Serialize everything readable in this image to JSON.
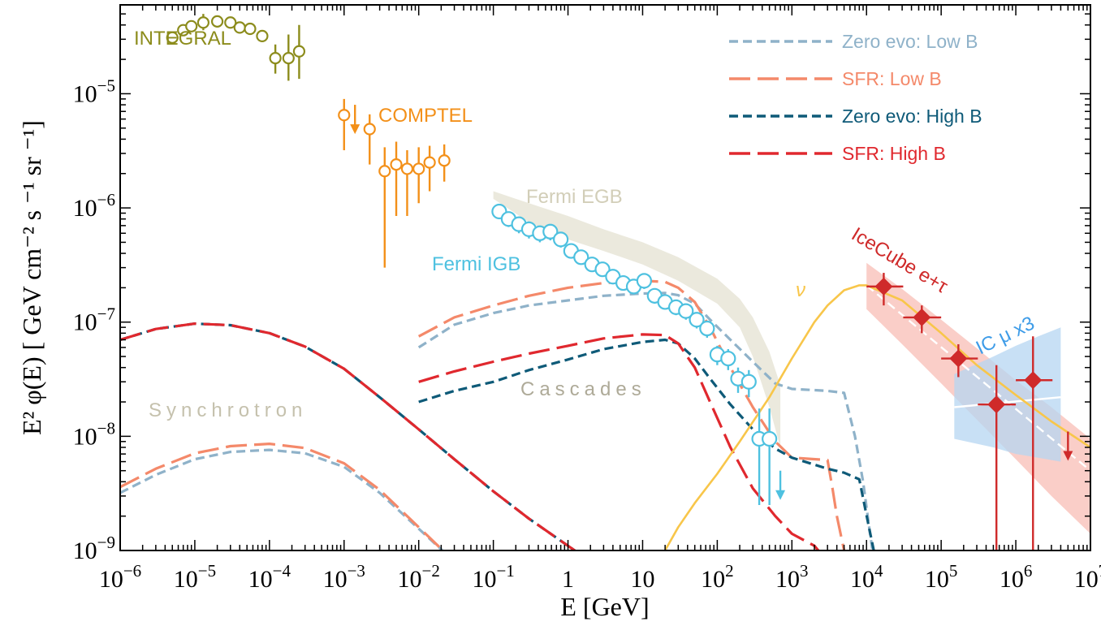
{
  "chart_data": {
    "type": "line",
    "xlabel": "E [GeV]",
    "ylabel": "E² φ(E)  [ GeV cm⁻² s ⁻¹ sr ⁻¹]",
    "xscale": "log",
    "yscale": "log",
    "xlim": [
      1e-06,
      10000000.0
    ],
    "ylim": [
      1e-09,
      6e-05
    ],
    "grid": false,
    "legend_position": "top-right",
    "x_ticks": [
      {
        "value": 1e-06,
        "base": "10",
        "exp": "−6"
      },
      {
        "value": 1e-05,
        "base": "10",
        "exp": "−5"
      },
      {
        "value": 0.0001,
        "base": "10",
        "exp": "−4"
      },
      {
        "value": 0.001,
        "base": "10",
        "exp": "−3"
      },
      {
        "value": 0.01,
        "base": "10",
        "exp": "−2"
      },
      {
        "value": 0.1,
        "base": "10",
        "exp": "−1"
      },
      {
        "value": 1,
        "base": "1",
        "exp": ""
      },
      {
        "value": 10,
        "base": "10",
        "exp": ""
      },
      {
        "value": 100,
        "base": "10",
        "exp": "2"
      },
      {
        "value": 1000,
        "base": "10",
        "exp": "3"
      },
      {
        "value": 10000.0,
        "base": "10",
        "exp": "4"
      },
      {
        "value": 100000.0,
        "base": "10",
        "exp": "5"
      },
      {
        "value": 1000000.0,
        "base": "10",
        "exp": "6"
      },
      {
        "value": 10000000.0,
        "base": "10",
        "exp": "7"
      }
    ],
    "y_ticks": [
      {
        "value": 1e-09,
        "base": "10",
        "exp": "−9"
      },
      {
        "value": 1e-08,
        "base": "10",
        "exp": "−8"
      },
      {
        "value": 1e-07,
        "base": "10",
        "exp": "−7"
      },
      {
        "value": 1e-06,
        "base": "10",
        "exp": "−6"
      },
      {
        "value": 1e-05,
        "base": "10",
        "exp": "−5"
      }
    ],
    "legend": [
      {
        "label": "Zero evo: Low B",
        "color": "#8fb2c9",
        "dash": "short"
      },
      {
        "label": "SFR: Low B",
        "color": "#f4896a",
        "dash": "long"
      },
      {
        "label": "Zero evo: High B",
        "color": "#0e5a78",
        "dash": "short"
      },
      {
        "label": "SFR: High B",
        "color": "#e0282e",
        "dash": "long"
      }
    ],
    "series": [
      {
        "name": "Zero evo: Low B",
        "color": "#8fb2c9",
        "dash": "short",
        "x": [
          1e-06,
          3e-06,
          1e-05,
          3e-05,
          0.0001,
          0.0003,
          0.001,
          0.003,
          0.01,
          0.03
        ],
        "y": [
          3.2e-09,
          4.6e-09,
          6.3e-09,
          7.3e-09,
          7.6e-09,
          7.1e-09,
          5.4e-09,
          3.2e-09,
          1.55e-09,
          8e-10
        ]
      },
      {
        "name": "SFR: Low B",
        "color": "#f4896a",
        "dash": "long",
        "x": [
          1e-06,
          3e-06,
          1e-05,
          3e-05,
          0.0001,
          0.0003,
          0.001,
          0.003,
          0.01,
          0.03
        ],
        "y": [
          3.6e-09,
          5.2e-09,
          7.1e-09,
          8.2e-09,
          8.6e-09,
          7.9e-09,
          5.8e-09,
          3.4e-09,
          1.6e-09,
          8e-10
        ]
      },
      {
        "name": "Zero evo: High B",
        "color": "#0e5a78",
        "dash": "short",
        "x": [
          1e-06,
          3e-06,
          1e-05,
          3e-05,
          0.0001,
          0.0003,
          0.001,
          0.003,
          0.01,
          0.03,
          0.1,
          0.3,
          1,
          2,
          3
        ],
        "y": [
          7e-08,
          8.7e-08,
          9.7e-08,
          9.4e-08,
          8e-08,
          6.1e-08,
          3.9e-08,
          2.2e-08,
          1.15e-08,
          6.3e-09,
          3.3e-09,
          1.9e-09,
          1.1e-09,
          8e-10,
          6e-10
        ]
      },
      {
        "name": "SFR: High B",
        "color": "#e0282e",
        "dash": "long",
        "x": [
          1e-06,
          3e-06,
          1e-05,
          3e-05,
          0.0001,
          0.0003,
          0.001,
          0.003,
          0.01,
          0.03,
          0.1,
          0.3,
          1,
          2,
          3
        ],
        "y": [
          7e-08,
          8.7e-08,
          9.7e-08,
          9.4e-08,
          8e-08,
          6.1e-08,
          3.9e-08,
          2.2e-08,
          1.15e-08,
          6.3e-09,
          3.3e-09,
          1.9e-09,
          1.1e-09,
          8e-10,
          6e-10
        ]
      },
      {
        "name": "Zero evo: Low B",
        "color": "#8fb2c9",
        "dash": "short",
        "x": [
          0.01,
          0.03,
          0.1,
          0.3,
          1,
          3,
          10,
          20,
          30,
          50,
          80,
          150,
          300,
          600,
          1000,
          3000,
          5000,
          7000,
          9000,
          11000,
          13000
        ],
        "y": [
          6e-08,
          9.5e-08,
          1.2e-07,
          1.4e-07,
          1.55e-07,
          1.7e-07,
          1.78e-07,
          1.8e-07,
          1.72e-07,
          1.45e-07,
          1.05e-07,
          7e-08,
          4.5e-08,
          2.9e-08,
          2.6e-08,
          2.5e-08,
          2.4e-08,
          1e-08,
          4e-09,
          1.5e-09,
          7e-10
        ]
      },
      {
        "name": "SFR: Low B",
        "color": "#f4896a",
        "dash": "long",
        "x": [
          0.01,
          0.03,
          0.1,
          0.3,
          1,
          3,
          10,
          20,
          30,
          50,
          80,
          150,
          300,
          600,
          1000,
          3000,
          3500,
          4000,
          5000,
          7000
        ],
        "y": [
          7.5e-08,
          1.1e-07,
          1.4e-07,
          1.7e-07,
          2e-07,
          2.2e-07,
          2.3e-07,
          2.25e-07,
          2e-07,
          1.5e-07,
          9e-08,
          4e-08,
          1.8e-08,
          9e-09,
          6.5e-09,
          6.2e-09,
          3.5e-09,
          2e-09,
          1e-09,
          5e-10
        ]
      },
      {
        "name": "Zero evo: High B",
        "color": "#0e5a78",
        "dash": "short",
        "x": [
          0.01,
          0.03,
          0.1,
          0.3,
          1,
          3,
          10,
          20,
          30,
          50,
          80,
          150,
          300,
          600,
          1000,
          3000,
          5000,
          8000,
          11000,
          14000
        ],
        "y": [
          2e-08,
          2.5e-08,
          3e-08,
          3.8e-08,
          4.7e-08,
          5.8e-08,
          6.7e-08,
          7e-08,
          6.5e-08,
          4.8e-08,
          3.2e-08,
          1.9e-08,
          1.15e-08,
          7.8e-09,
          6.5e-09,
          5.2e-09,
          4.8e-09,
          4.2e-09,
          1.5e-09,
          7e-10
        ]
      },
      {
        "name": "SFR: High B",
        "color": "#e0282e",
        "dash": "long",
        "x": [
          0.01,
          0.03,
          0.1,
          0.3,
          1,
          3,
          10,
          20,
          30,
          50,
          80,
          150,
          300,
          600,
          1000,
          2000,
          3000,
          4000
        ],
        "y": [
          3e-08,
          3.7e-08,
          4.5e-08,
          5.3e-08,
          6.2e-08,
          7.2e-08,
          7.8e-08,
          7.7e-08,
          6.5e-08,
          4e-08,
          2e-08,
          8e-09,
          3.5e-09,
          2e-09,
          1.4e-09,
          1.1e-09,
          8e-10,
          6e-10
        ]
      },
      {
        "name": "ν",
        "color": "#f8c64a",
        "dash": "solid",
        "x": [
          20,
          30,
          50,
          100,
          200,
          500,
          1000,
          2000,
          3000,
          5000,
          8000,
          10000.0,
          30000.0,
          100000.0,
          300000.0,
          1000000.0,
          3000000.0,
          10000000.0
        ],
        "y": [
          1e-09,
          1.6e-09,
          2.6e-09,
          4.7e-09,
          9e-09,
          2.2e-08,
          4.8e-08,
          1e-07,
          1.4e-07,
          1.9e-07,
          2.1e-07,
          2.1e-07,
          1.55e-07,
          8e-08,
          4.2e-08,
          2.3e-08,
          1.35e-08,
          8e-09
        ]
      }
    ],
    "bands": [
      {
        "name": "Fermi EGB",
        "color": "#e4e1d2",
        "x": [
          0.1,
          0.3,
          1,
          3,
          10,
          30,
          100,
          200,
          300,
          500,
          700
        ],
        "y_low": [
          1.2e-06,
          7.5e-07,
          5.3e-07,
          4.2e-07,
          3.2e-07,
          2.3e-07,
          1.45e-07,
          9e-08,
          5e-08,
          1.8e-08,
          8e-09
        ],
        "y_high": [
          1.4e-06,
          1.1e-06,
          8.5e-07,
          6.5e-07,
          5e-07,
          3.7e-07,
          2.4e-07,
          1.6e-07,
          1.1e-07,
          5.5e-08,
          2.8e-08
        ]
      },
      {
        "name": "IceCube e+τ",
        "color": "#f8bdb5",
        "x": [
          10000.0,
          30000.0,
          100000.0,
          300000.0,
          1000000.0,
          3000000.0,
          10000000.0
        ],
        "y_low": [
          1.3e-07,
          6.4e-08,
          2.9e-08,
          1.4e-08,
          6.3e-09,
          3e-09,
          1.4e-09
        ],
        "y_high": [
          3.3e-07,
          1.95e-07,
          1.05e-07,
          5.9e-08,
          3.1e-08,
          1.8e-08,
          9.5e-09
        ]
      },
      {
        "name": "IC μ x3",
        "color": "#b5d6f2",
        "x": [
          150000.0,
          500000.0,
          1000000.0,
          2000000.0,
          4000000.0
        ],
        "y_low": [
          9.5e-09,
          8e-09,
          7e-09,
          6.5e-09,
          6e-09
        ],
        "y_high": [
          3.5e-08,
          5e-08,
          6.2e-08,
          7.5e-08,
          9e-08
        ]
      }
    ],
    "ic_mu_line": {
      "x": [
        150000.0,
        4000000.0
      ],
      "y": [
        1.8e-08,
        2.2e-08
      ],
      "color": "#ffffff"
    },
    "icecube_line": {
      "x": [
        10000.0,
        10000000.0
      ],
      "y": [
        2.1e-07,
        5e-09
      ],
      "color": "#ffffff"
    },
    "points": [
      {
        "name": "INTEGRAL",
        "color": "#8c8c1c",
        "marker": "open-circle",
        "x": [
          5e-06,
          7e-06,
          9e-06,
          1.3e-05,
          2e-05,
          3e-05,
          4e-05,
          5.5e-05,
          8e-05,
          0.00012,
          0.00018,
          0.00025
        ],
        "y": [
          3.1e-05,
          3.6e-05,
          3.9e-05,
          4.2e-05,
          4.3e-05,
          4.2e-05,
          3.8e-05,
          3.7e-05,
          3.2e-05,
          2.05e-05,
          2.05e-05,
          2.35e-05
        ],
        "y_low": [
          3.1e-05,
          3.6e-05,
          3.9e-05,
          3.6e-05,
          4.3e-05,
          4.2e-05,
          3.8e-05,
          3.7e-05,
          3.2e-05,
          1.5e-05,
          1.3e-05,
          1.35e-05
        ],
        "y_high": [
          3.1e-05,
          3.6e-05,
          3.9e-05,
          5e-05,
          4.3e-05,
          4.2e-05,
          3.8e-05,
          3.7e-05,
          3.2e-05,
          2.7e-05,
          3.3e-05,
          4e-05
        ]
      },
      {
        "name": "COMPTEL",
        "color": "#f39019",
        "marker": "open-circle",
        "x": [
          0.001,
          0.0022,
          0.0035,
          0.005,
          0.007,
          0.01,
          0.014,
          0.022
        ],
        "y": [
          6.5e-06,
          4.9e-06,
          2.1e-06,
          2.4e-06,
          2.2e-06,
          2.2e-06,
          2.5e-06,
          2.6e-06
        ],
        "y_low": [
          3.2e-06,
          2.4e-06,
          3e-07,
          8.5e-07,
          8.5e-07,
          1.1e-06,
          1.4e-06,
          1.7e-06
        ],
        "y_high": [
          9e-06,
          6.6e-06,
          3.4e-06,
          3.8e-06,
          3.2e-06,
          3.4e-06,
          3.5e-06,
          3.6e-06
        ]
      },
      {
        "name": "Fermi IGB",
        "color": "#4ec1e0",
        "marker": "open-circle",
        "x": [
          0.12,
          0.16,
          0.22,
          0.3,
          0.42,
          0.58,
          0.8,
          1.1,
          1.5,
          2.1,
          2.9,
          4,
          5.5,
          7.6,
          10.5,
          14.5,
          20,
          28,
          38,
          53,
          73,
          100,
          140,
          190,
          265,
          365,
          500
        ],
        "y": [
          9.3e-07,
          8e-07,
          7.2e-07,
          6.5e-07,
          6e-07,
          6.2e-07,
          5.3e-07,
          4.2e-07,
          3.7e-07,
          3.2e-07,
          2.9e-07,
          2.5e-07,
          2.2e-07,
          2.05e-07,
          2.3e-07,
          1.7e-07,
          1.5e-07,
          1.35e-07,
          1.25e-07,
          1.05e-07,
          8.8e-08,
          5.2e-08,
          4.8e-08,
          3.2e-08,
          3e-08,
          9.5e-09,
          9.5e-09
        ],
        "y_low": [
          8e-07,
          6.8e-07,
          6e-07,
          5.4e-07,
          5e-07,
          5.2e-07,
          4.5e-07,
          3.6e-07,
          3.2e-07,
          2.75e-07,
          2.5e-07,
          2.15e-07,
          1.9e-07,
          1.75e-07,
          1.95e-07,
          1.45e-07,
          1.3e-07,
          1.15e-07,
          1.05e-07,
          8.8e-08,
          7.3e-08,
          4.2e-08,
          3.8e-08,
          2.4e-08,
          2.2e-08,
          2.5e-09,
          2.5e-09
        ],
        "y_high": [
          1.05e-06,
          9.2e-07,
          8.4e-07,
          7.6e-07,
          7e-07,
          7.2e-07,
          6.1e-07,
          4.8e-07,
          4.2e-07,
          3.7e-07,
          3.3e-07,
          2.85e-07,
          2.5e-07,
          2.35e-07,
          2.65e-07,
          1.95e-07,
          1.7e-07,
          1.55e-07,
          1.45e-07,
          1.22e-07,
          1.03e-07,
          6.2e-08,
          5.8e-08,
          4e-08,
          3.8e-08,
          1.75e-08,
          1.75e-08
        ]
      },
      {
        "name": "IceCube e+τ",
        "color": "#cf2a2a",
        "marker": "filled-diamond",
        "x": [
          17000,
          55000,
          170000,
          550000,
          1700000
        ],
        "y": [
          2.05e-07,
          1.1e-07,
          4.8e-08,
          1.9e-08,
          3.1e-08
        ],
        "y_low": [
          1.4e-07,
          8e-08,
          3.3e-08,
          1e-09,
          1e-09
        ],
        "y_high": [
          2.7e-07,
          1.4e-07,
          6.4e-08,
          4.2e-08,
          7.5e-08
        ],
        "x_low": [
          10000,
          31000,
          100000,
          310000,
          1000000
        ],
        "x_high": [
          31000,
          100000,
          310000,
          1000000,
          3100000
        ]
      }
    ],
    "upper_limits": [
      {
        "series": "COMPTEL",
        "color": "#f39019",
        "x": 0.0014,
        "y": 8e-06
      },
      {
        "series": "Fermi IGB",
        "color": "#4ec1e0",
        "x": 700,
        "y": 5e-09
      },
      {
        "series": "IceCube e+τ",
        "color": "#cf2a2a",
        "x": 5000000,
        "y": 1.1e-08
      }
    ],
    "annotations": {
      "integral": {
        "text": "INTEGRAL",
        "color": "#8c8c1c"
      },
      "comptel": {
        "text": "COMPTEL",
        "color": "#f39019"
      },
      "fermi_egb": {
        "text": "Fermi EGB",
        "color": "#d2ceb8"
      },
      "fermi_igb": {
        "text": "Fermi IGB",
        "color": "#4ec1e0"
      },
      "synchrotron": {
        "text": "Synchrotron",
        "color": "#c5c1ad"
      },
      "cascades": {
        "text": "Cascades",
        "color": "#aeaa98"
      },
      "nu": {
        "text": "ν",
        "color": "#f8c64a"
      },
      "icecube": {
        "text": "IceCube e+τ",
        "color": "#cf2a2a"
      },
      "ic_mu": {
        "text": "IC μ x3",
        "color": "#3e9ce8"
      }
    }
  }
}
